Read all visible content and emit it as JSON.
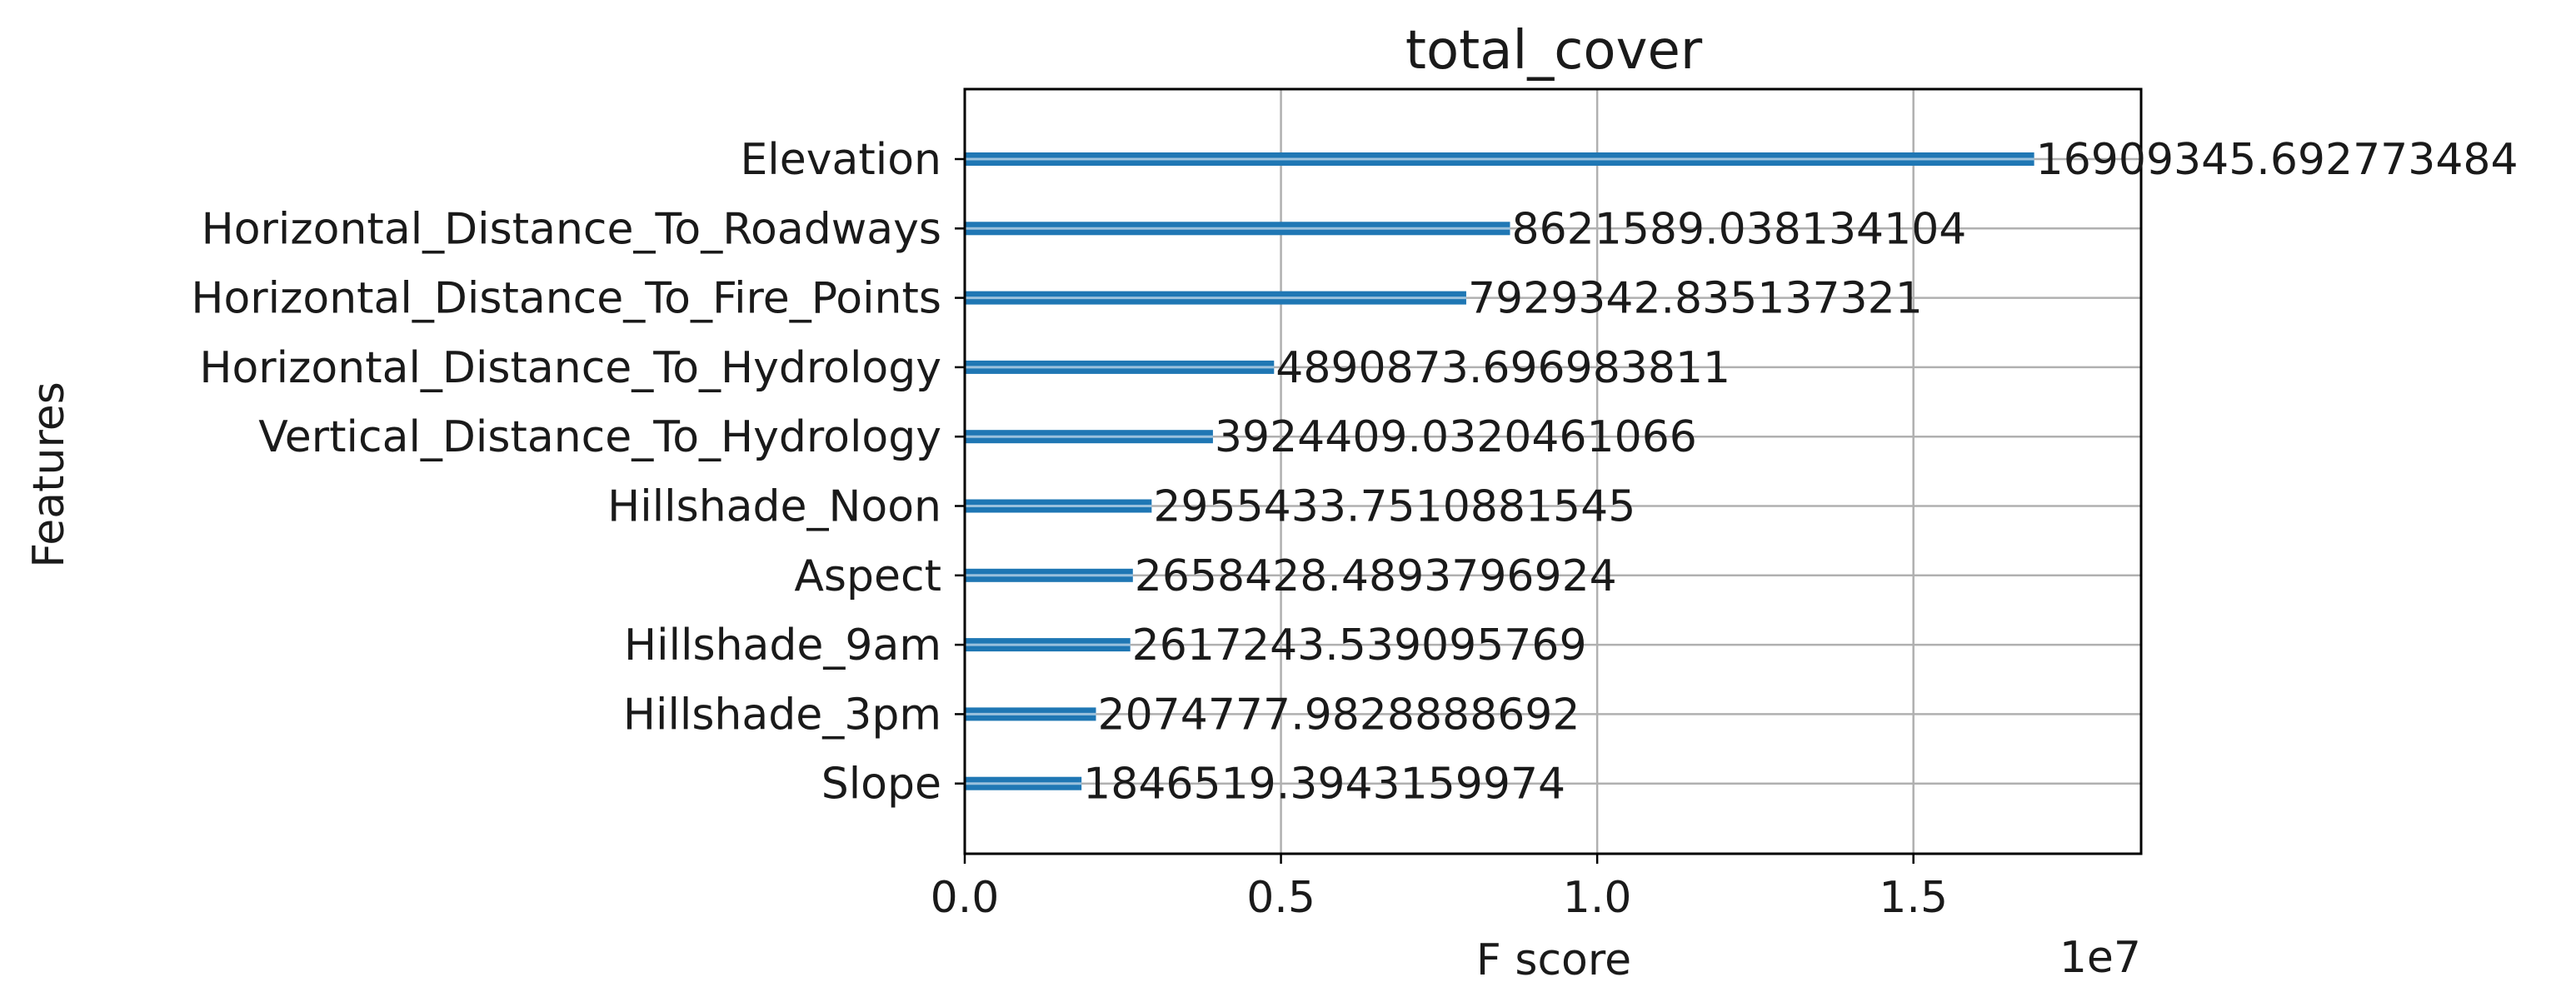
{
  "chart_data": {
    "type": "bar",
    "orientation": "horizontal",
    "title": "total_cover",
    "xlabel": "F score",
    "ylabel": "Features",
    "x_offset_label": "1e7",
    "x_ticks": [
      {
        "value": 0,
        "label": "0.0"
      },
      {
        "value": 5000000,
        "label": "0.5"
      },
      {
        "value": 10000000,
        "label": "1.0"
      },
      {
        "value": 15000000,
        "label": "1.5"
      }
    ],
    "xlim": [
      0,
      18600280
    ],
    "grid": true,
    "colors": {
      "bar": "#1f77b4"
    },
    "categories": [
      "Elevation",
      "Horizontal_Distance_To_Roadways",
      "Horizontal_Distance_To_Fire_Points",
      "Horizontal_Distance_To_Hydrology",
      "Vertical_Distance_To_Hydrology",
      "Hillshade_Noon",
      "Aspect",
      "Hillshade_9am",
      "Hillshade_3pm",
      "Slope"
    ],
    "values": [
      16909345.692773484,
      8621589.038134104,
      7929342.835137321,
      4890873.696983811,
      3924409.0320461066,
      2955433.7510881545,
      2658428.4893796924,
      2617243.539095769,
      2074777.9828888692,
      1846519.3943159974
    ],
    "value_labels": [
      "16909345.692773484",
      "8621589.038134104",
      "7929342.835137321",
      "4890873.696983811",
      "3924409.0320461066",
      "2955433.7510881545",
      "2658428.4893796924",
      "2617243.539095769",
      "2074777.9828888692",
      "1846519.3943159974"
    ]
  }
}
